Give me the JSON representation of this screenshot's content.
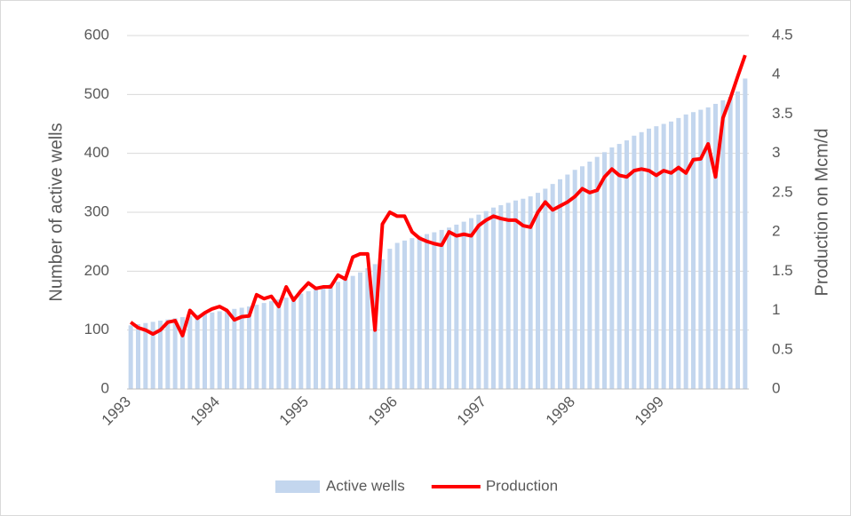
{
  "chart_data": {
    "type": "bar_line",
    "y_label": "Number of active wells",
    "y2_label": "Production on Mcm/d",
    "categories": [
      "1993",
      null,
      null,
      null,
      null,
      null,
      null,
      null,
      null,
      null,
      null,
      null,
      "1994",
      null,
      null,
      null,
      null,
      null,
      null,
      null,
      null,
      null,
      null,
      null,
      "1995",
      null,
      null,
      null,
      null,
      null,
      null,
      null,
      null,
      null,
      null,
      null,
      "1996",
      null,
      null,
      null,
      null,
      null,
      null,
      null,
      null,
      null,
      null,
      null,
      "1997",
      null,
      null,
      null,
      null,
      null,
      null,
      null,
      null,
      null,
      null,
      null,
      "1998",
      null,
      null,
      null,
      null,
      null,
      null,
      null,
      null,
      null,
      null,
      null,
      "1999",
      null,
      null,
      null,
      null,
      null,
      null,
      null,
      null,
      null,
      null,
      null
    ],
    "series": [
      {
        "name": "Active wells",
        "type": "bar",
        "color": "#c3d6ee",
        "values": [
          108,
          110,
          112,
          114,
          116,
          118,
          120,
          122,
          124,
          126,
          128,
          130,
          132,
          134,
          136,
          138,
          140,
          143,
          146,
          149,
          152,
          155,
          158,
          162,
          166,
          170,
          174,
          178,
          182,
          186,
          192,
          198,
          205,
          212,
          220,
          238,
          248,
          252,
          256,
          260,
          263,
          266,
          270,
          274,
          279,
          284,
          290,
          296,
          302,
          308,
          312,
          316,
          320,
          323,
          327,
          333,
          340,
          348,
          356,
          364,
          372,
          378,
          386,
          394,
          402,
          410,
          416,
          422,
          430,
          436,
          442,
          446,
          450,
          454,
          460,
          466,
          470,
          474,
          478,
          484,
          490,
          496,
          505,
          527
        ]
      },
      {
        "name": "Production",
        "type": "line",
        "axis": "y2",
        "color": "#ff0000",
        "values": [
          0.85,
          0.78,
          0.75,
          0.7,
          0.75,
          0.85,
          0.87,
          0.68,
          1.0,
          0.9,
          0.97,
          1.02,
          1.05,
          1.0,
          0.88,
          0.92,
          0.93,
          1.2,
          1.15,
          1.18,
          1.05,
          1.3,
          1.13,
          1.25,
          1.35,
          1.28,
          1.3,
          1.3,
          1.45,
          1.4,
          1.68,
          1.72,
          1.72,
          0.75,
          2.1,
          2.25,
          2.2,
          2.2,
          2.0,
          1.92,
          1.88,
          1.85,
          1.83,
          2.0,
          1.95,
          1.97,
          1.95,
          2.08,
          2.15,
          2.2,
          2.17,
          2.15,
          2.15,
          2.08,
          2.06,
          2.25,
          2.38,
          2.28,
          2.33,
          2.38,
          2.45,
          2.55,
          2.5,
          2.53,
          2.7,
          2.8,
          2.72,
          2.7,
          2.78,
          2.8,
          2.78,
          2.72,
          2.78,
          2.75,
          2.82,
          2.75,
          2.92,
          2.93,
          3.12,
          2.7,
          3.45,
          3.7,
          3.98,
          4.25
        ]
      }
    ],
    "ylim": [
      0,
      600
    ],
    "yticks": [
      0,
      100,
      200,
      300,
      400,
      500,
      600
    ],
    "y2lim": [
      0,
      4.5
    ],
    "y2ticks": [
      0,
      0.5,
      1,
      1.5,
      2,
      2.5,
      3,
      3.5,
      4,
      4.5
    ],
    "grid": true,
    "legend": "bottom"
  }
}
